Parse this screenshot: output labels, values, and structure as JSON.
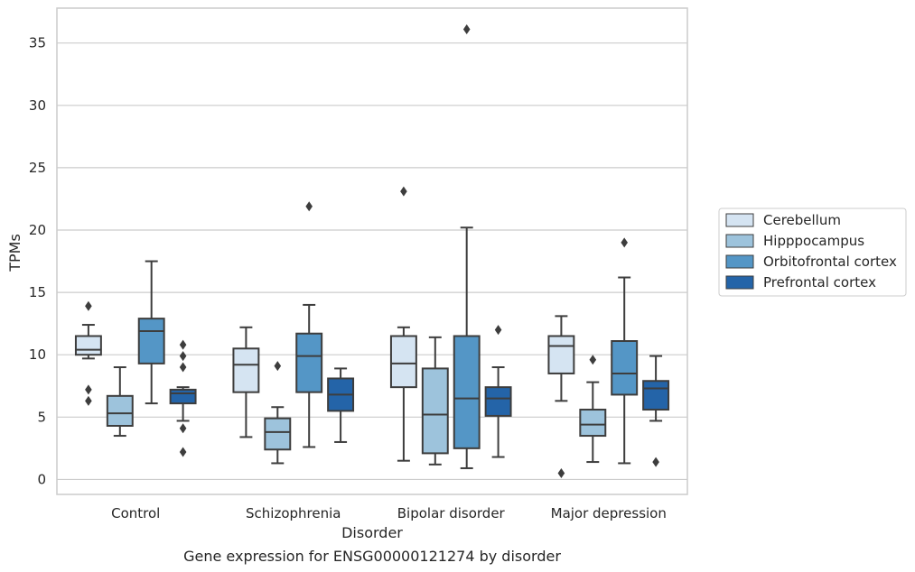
{
  "chart_data": {
    "type": "box",
    "title": "",
    "caption": "Gene expression for ENSG00000121274 by disorder",
    "xlabel": "Disorder",
    "ylabel": "TPMs",
    "ylim": [
      -1.2,
      37.8
    ],
    "yticks": [
      0,
      5,
      10,
      15,
      20,
      25,
      30,
      35
    ],
    "grid": "y",
    "legend_placement": "right",
    "categories": [
      "Control",
      "Schizophrenia",
      "Bipolar disorder",
      "Major depression"
    ],
    "series": [
      {
        "name": "Cerebellum",
        "color": "#d5e4f2",
        "boxes": [
          {
            "whisker_low": 9.7,
            "q1": 10.0,
            "median": 10.4,
            "q3": 11.5,
            "whisker_high": 12.4,
            "outliers": [
              13.9,
              7.2,
              6.3
            ]
          },
          {
            "whisker_low": 3.4,
            "q1": 7.0,
            "median": 9.2,
            "q3": 10.5,
            "whisker_high": 12.2,
            "outliers": []
          },
          {
            "whisker_low": 1.5,
            "q1": 7.4,
            "median": 9.3,
            "q3": 11.5,
            "whisker_high": 12.2,
            "outliers": [
              23.1
            ]
          },
          {
            "whisker_low": 6.3,
            "q1": 8.5,
            "median": 10.7,
            "q3": 11.5,
            "whisker_high": 13.1,
            "outliers": [
              0.5
            ]
          }
        ]
      },
      {
        "name": "Hipppocampus",
        "color": "#9dc3dc",
        "boxes": [
          {
            "whisker_low": 3.5,
            "q1": 4.3,
            "median": 5.3,
            "q3": 6.7,
            "whisker_high": 9.0,
            "outliers": []
          },
          {
            "whisker_low": 1.3,
            "q1": 2.4,
            "median": 3.8,
            "q3": 4.9,
            "whisker_high": 5.8,
            "outliers": [
              9.1
            ]
          },
          {
            "whisker_low": 1.2,
            "q1": 2.1,
            "median": 5.2,
            "q3": 8.9,
            "whisker_high": 11.4,
            "outliers": []
          },
          {
            "whisker_low": 1.4,
            "q1": 3.5,
            "median": 4.4,
            "q3": 5.6,
            "whisker_high": 7.8,
            "outliers": [
              9.6
            ]
          }
        ]
      },
      {
        "name": "Orbitofrontal cortex",
        "color": "#5496c6",
        "boxes": [
          {
            "whisker_low": 6.1,
            "q1": 9.3,
            "median": 11.9,
            "q3": 12.9,
            "whisker_high": 17.5,
            "outliers": []
          },
          {
            "whisker_low": 2.6,
            "q1": 7.0,
            "median": 9.9,
            "q3": 11.7,
            "whisker_high": 14.0,
            "outliers": [
              21.9
            ]
          },
          {
            "whisker_low": 0.9,
            "q1": 2.5,
            "median": 6.5,
            "q3": 11.5,
            "whisker_high": 20.2,
            "outliers": [
              36.1
            ]
          },
          {
            "whisker_low": 1.3,
            "q1": 6.8,
            "median": 8.5,
            "q3": 11.1,
            "whisker_high": 16.2,
            "outliers": [
              19.0
            ]
          }
        ]
      },
      {
        "name": "Prefrontal cortex",
        "color": "#2464a8",
        "boxes": [
          {
            "whisker_low": 4.7,
            "q1": 6.1,
            "median": 6.9,
            "q3": 7.2,
            "whisker_high": 7.4,
            "outliers": [
              10.8,
              9.9,
              9.0,
              4.1,
              2.2
            ]
          },
          {
            "whisker_low": 3.0,
            "q1": 5.5,
            "median": 6.8,
            "q3": 8.1,
            "whisker_high": 8.9,
            "outliers": []
          },
          {
            "whisker_low": 1.8,
            "q1": 5.1,
            "median": 6.5,
            "q3": 7.4,
            "whisker_high": 9.0,
            "outliers": [
              12.0
            ]
          },
          {
            "whisker_low": 4.7,
            "q1": 5.6,
            "median": 7.3,
            "q3": 7.9,
            "whisker_high": 9.9,
            "outliers": [
              1.4
            ]
          }
        ]
      }
    ]
  }
}
